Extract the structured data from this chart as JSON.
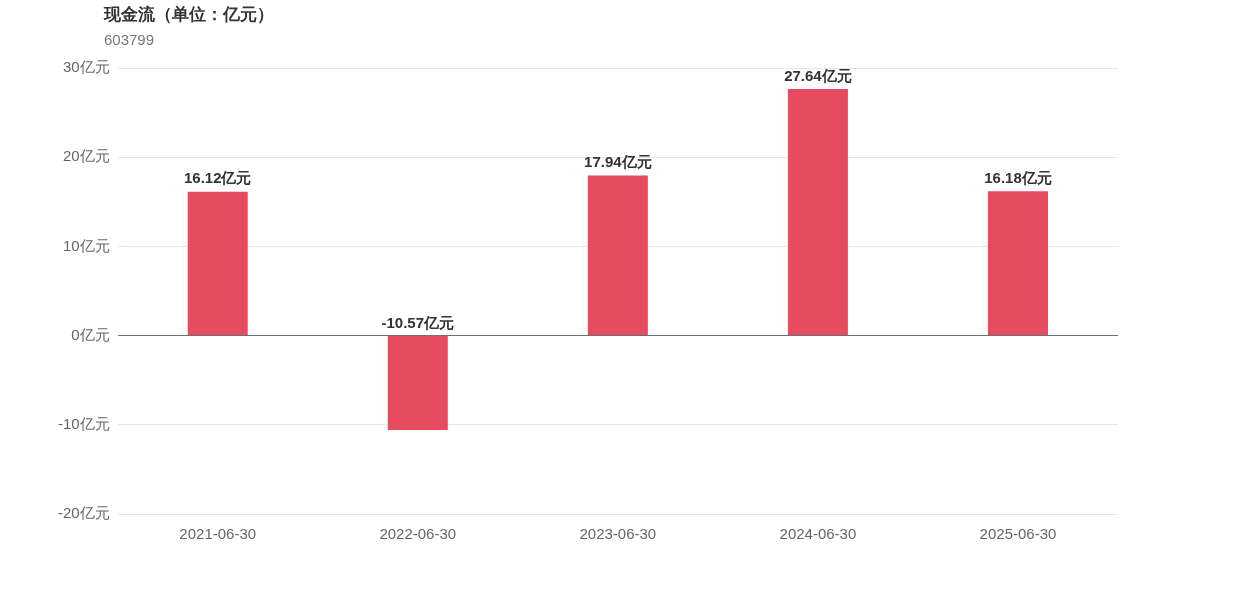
{
  "chart_data": {
    "type": "bar",
    "title": "现金流（单位：亿元）",
    "subtitle": "603799",
    "categories": [
      "2021-06-30",
      "2022-06-30",
      "2023-06-30",
      "2024-06-30",
      "2025-06-30"
    ],
    "values": [
      16.12,
      -10.57,
      17.94,
      27.64,
      16.18
    ],
    "value_labels": [
      "16.12亿元",
      "-10.57亿元",
      "17.94亿元",
      "27.64亿元",
      "16.18亿元"
    ],
    "color": "#e64b5f",
    "ylim": [
      -20,
      30
    ],
    "yticks": [
      {
        "value": -20,
        "label": "-20亿元"
      },
      {
        "value": -10,
        "label": "-10亿元"
      },
      {
        "value": 0,
        "label": "0亿元"
      },
      {
        "value": 10,
        "label": "10亿元"
      },
      {
        "value": 20,
        "label": "20亿元"
      },
      {
        "value": 30,
        "label": "30亿元"
      }
    ],
    "grid": "y",
    "legend": false
  }
}
